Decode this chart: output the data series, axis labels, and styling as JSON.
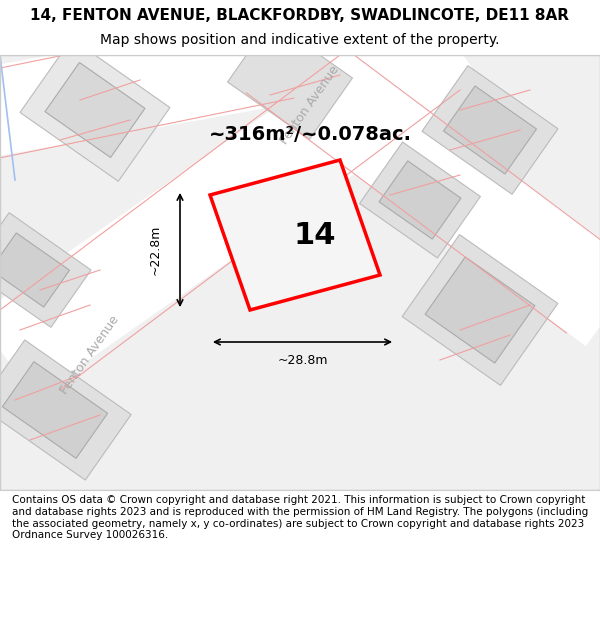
{
  "title_line1": "14, FENTON AVENUE, BLACKFORDBY, SWADLINCOTE, DE11 8AR",
  "title_line2": "Map shows position and indicative extent of the property.",
  "footer_text": "Contains OS data © Crown copyright and database right 2021. This information is subject to Crown copyright and database rights 2023 and is reproduced with the permission of HM Land Registry. The polygons (including the associated geometry, namely x, y co-ordinates) are subject to Crown copyright and database rights 2023 Ordnance Survey 100026316.",
  "area_label": "~316m²/~0.078ac.",
  "width_label": "~28.8m",
  "height_label": "~22.8m",
  "plot_number": "14",
  "background_color": "#f5f5f5",
  "map_bg_color": "#f0f0f0",
  "road_color": "#ffffff",
  "building_color": "#e0e0e0",
  "plot_outline_color": "#ff0000",
  "plot_fill_color": "#f0f0f0",
  "road_line_color": "#e8a0a0",
  "street_label1": "Fenton Avenue",
  "street_label2": "Fenton Avenue",
  "title_fontsize": 11,
  "subtitle_fontsize": 10,
  "footer_fontsize": 7.5
}
